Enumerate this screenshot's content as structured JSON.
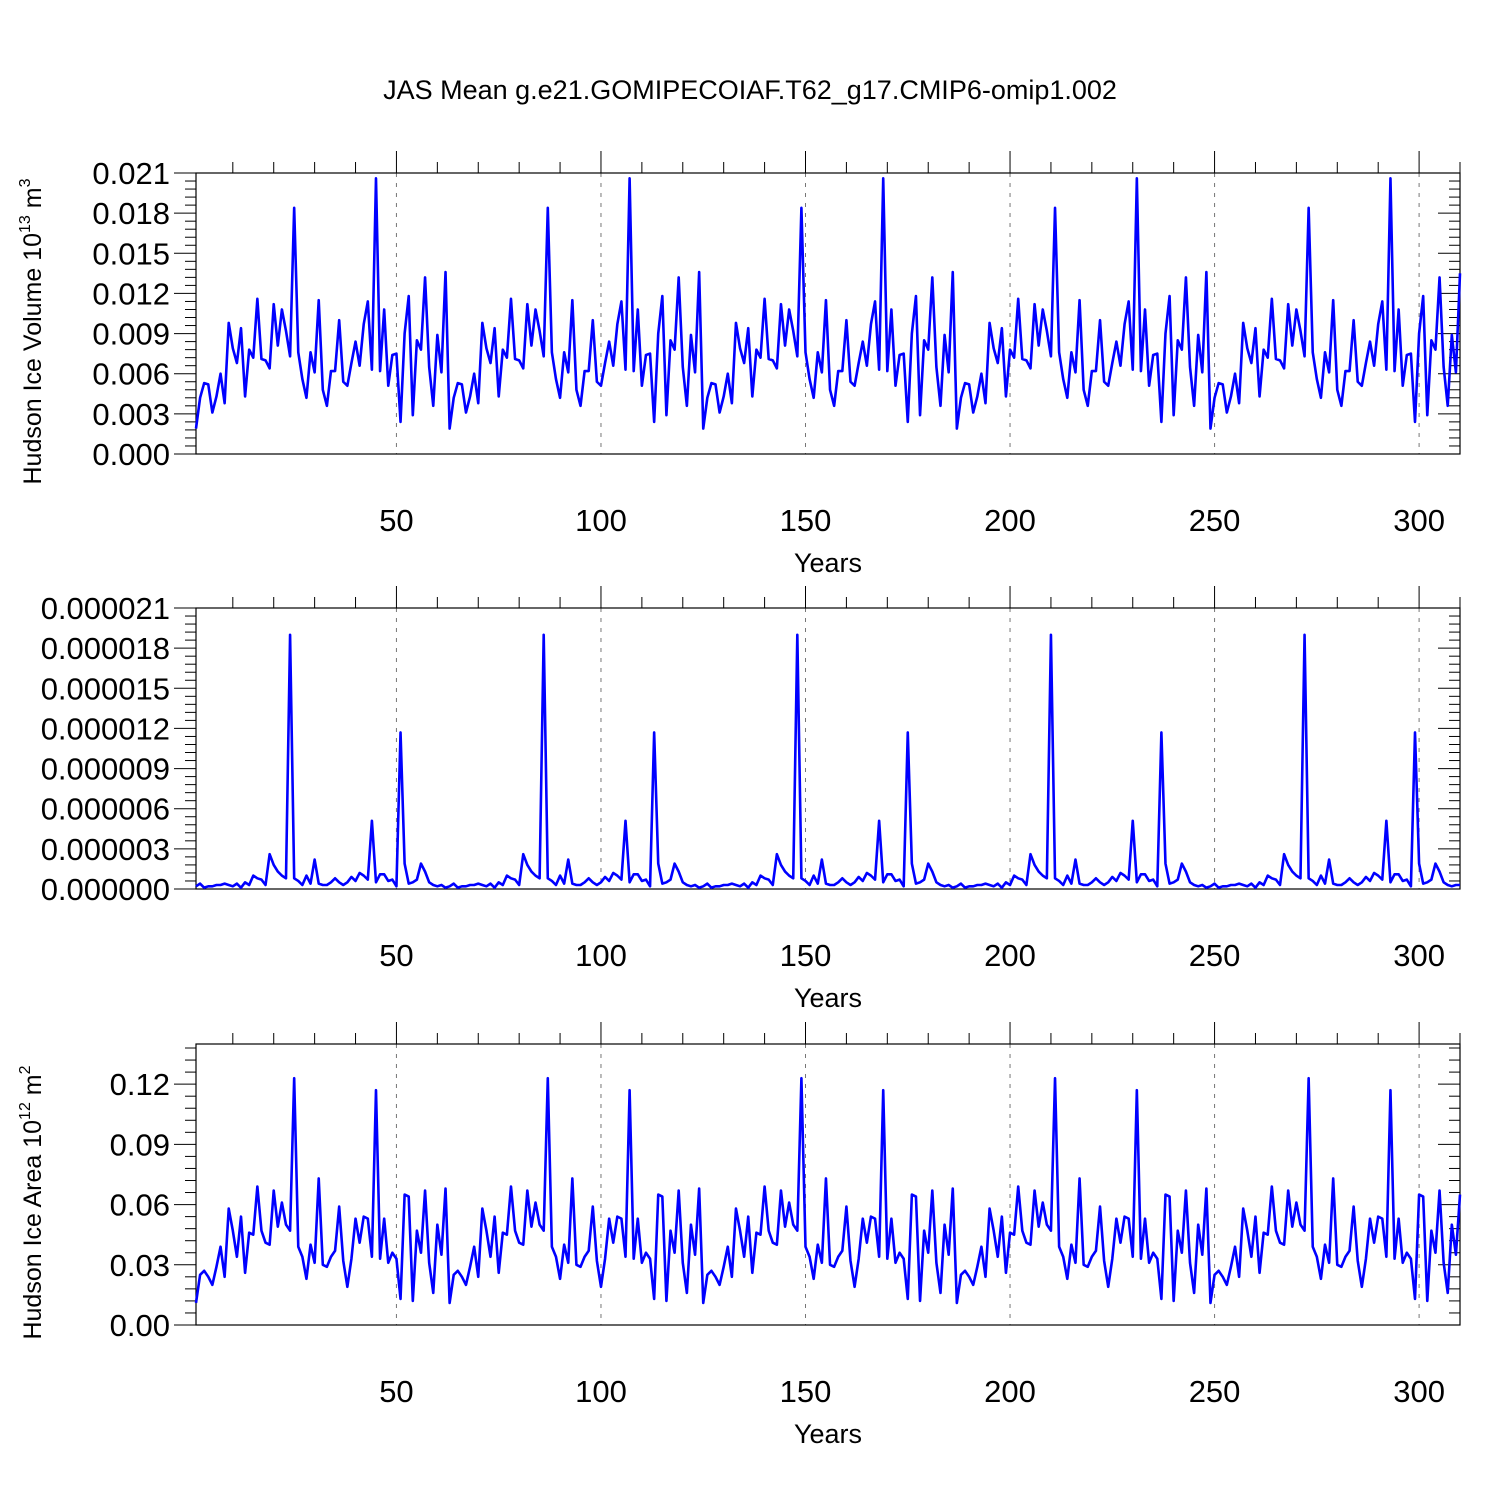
{
  "title": "JAS Mean g.e21.GOMIPECOIAF.T62_g17.CMIP6-omip1.002",
  "colors": {
    "line": "#0000ff",
    "axis": "#000000",
    "grid": "#777777"
  },
  "chart_data": [
    {
      "type": "line",
      "ylabel": "Hudson Ice Volume 10",
      "ylabel_exp": "13",
      "ylabel_unit": " m",
      "ylabel_unit_exp": "3",
      "xlabel": "Years",
      "xlim": [
        1,
        310
      ],
      "ylim": [
        0,
        0.021
      ],
      "xticks": [
        "50",
        "100",
        "150",
        "200",
        "250",
        "300"
      ],
      "xtick_values": [
        50,
        100,
        150,
        200,
        250,
        300
      ],
      "yticks": [
        "0.000",
        "0.003",
        "0.006",
        "0.009",
        "0.012",
        "0.015",
        "0.018",
        "0.021"
      ],
      "ytick_values": [
        0,
        0.003,
        0.006,
        0.009,
        0.012,
        0.015,
        0.018,
        0.021
      ],
      "grid": "vertical dashed at x ticks",
      "base": [
        0.0019,
        0.0042,
        0.0053,
        0.0052,
        0.0031,
        0.0043,
        0.006,
        0.0038,
        0.0098,
        0.0079,
        0.0068,
        0.0094,
        0.0043,
        0.0078,
        0.0072,
        0.0116,
        0.0071,
        0.007,
        0.0064,
        0.0112,
        0.0081,
        0.0108,
        0.0092,
        0.0073,
        0.0184,
        0.0076,
        0.0056,
        0.0042,
        0.0076,
        0.0061,
        0.0115,
        0.0048,
        0.0036,
        0.0062,
        0.0062,
        0.01,
        0.0054,
        0.0051,
        0.0068,
        0.0084,
        0.0066,
        0.0097,
        0.0114,
        0.0063,
        0.0206,
        0.0062,
        0.0108,
        0.0051,
        0.0074,
        0.0075,
        0.0024,
        0.009,
        0.0118,
        0.0029,
        0.0085,
        0.0078,
        0.0132,
        0.0065,
        0.0036,
        0.0089,
        0.0061,
        0.0136,
        0.004,
        0.0042,
        0.0053,
        0.0052
      ],
      "period": 62,
      "end_value": 0.0135
    },
    {
      "type": "line",
      "ylabel": "",
      "xlabel": "Years",
      "xlim": [
        1,
        310
      ],
      "ylim": [
        0,
        2.1e-05
      ],
      "xticks": [
        "50",
        "100",
        "150",
        "200",
        "250",
        "300"
      ],
      "xtick_values": [
        50,
        100,
        150,
        200,
        250,
        300
      ],
      "yticks": [
        "0.000000",
        "0.000003",
        "0.000006",
        "0.000009",
        "0.000012",
        "0.000015",
        "0.000018",
        "0.000021"
      ],
      "ytick_values": [
        0,
        3e-06,
        6e-06,
        9e-06,
        1.2e-05,
        1.5e-05,
        1.8e-05,
        2.1e-05
      ],
      "grid": "vertical dashed at x ticks",
      "base": [
        2e-07,
        4e-07,
        1e-07,
        2e-07,
        2e-07,
        3e-07,
        3e-07,
        4e-07,
        3e-07,
        2e-07,
        4e-07,
        1e-07,
        5e-07,
        3e-07,
        1e-06,
        8e-07,
        7e-07,
        3e-07,
        2.6e-06,
        1.8e-06,
        1.3e-06,
        1e-06,
        8e-07,
        1.9e-05,
        8e-07,
        6e-07,
        3e-07,
        1e-06,
        4e-07,
        2.2e-06,
        4e-07,
        3e-07,
        3e-07,
        5e-07,
        8e-07,
        5e-07,
        3e-07,
        5e-07,
        9e-07,
        6e-07,
        1.2e-06,
        1e-06,
        7e-07,
        5.1e-06,
        5e-07,
        1.1e-06,
        1.1e-06,
        6e-07,
        7e-07,
        2e-07,
        1.17e-05,
        1.9e-06,
        4e-07,
        5e-07,
        7e-07,
        1.9e-06,
        1.3e-06,
        5e-07,
        3e-07,
        2e-07,
        3e-07,
        1e-07
      ],
      "period": 62,
      "end_value": 3e-07
    },
    {
      "type": "line",
      "ylabel": "Hudson Ice Area 10",
      "ylabel_exp": "12",
      "ylabel_unit": " m",
      "ylabel_unit_exp": "2",
      "xlabel": "Years",
      "xlim": [
        1,
        310
      ],
      "ylim": [
        0,
        0.14
      ],
      "xticks": [
        "50",
        "100",
        "150",
        "200",
        "250",
        "300"
      ],
      "xtick_values": [
        50,
        100,
        150,
        200,
        250,
        300
      ],
      "yticks": [
        "0.00",
        "0.03",
        "0.06",
        "0.09",
        "0.12"
      ],
      "ytick_values": [
        0,
        0.03,
        0.06,
        0.09,
        0.12
      ],
      "grid": "vertical dashed at x ticks",
      "base": [
        0.011,
        0.025,
        0.027,
        0.024,
        0.02,
        0.029,
        0.039,
        0.024,
        0.058,
        0.047,
        0.034,
        0.054,
        0.026,
        0.046,
        0.045,
        0.069,
        0.047,
        0.041,
        0.04,
        0.067,
        0.049,
        0.061,
        0.05,
        0.047,
        0.123,
        0.039,
        0.034,
        0.023,
        0.04,
        0.031,
        0.073,
        0.03,
        0.029,
        0.034,
        0.037,
        0.059,
        0.032,
        0.019,
        0.033,
        0.053,
        0.041,
        0.054,
        0.053,
        0.034,
        0.117,
        0.033,
        0.053,
        0.031,
        0.036,
        0.033,
        0.013,
        0.065,
        0.064,
        0.012,
        0.047,
        0.036,
        0.067,
        0.031,
        0.016,
        0.05,
        0.035,
        0.068
      ],
      "period": 62,
      "end_value": 0.065
    }
  ]
}
